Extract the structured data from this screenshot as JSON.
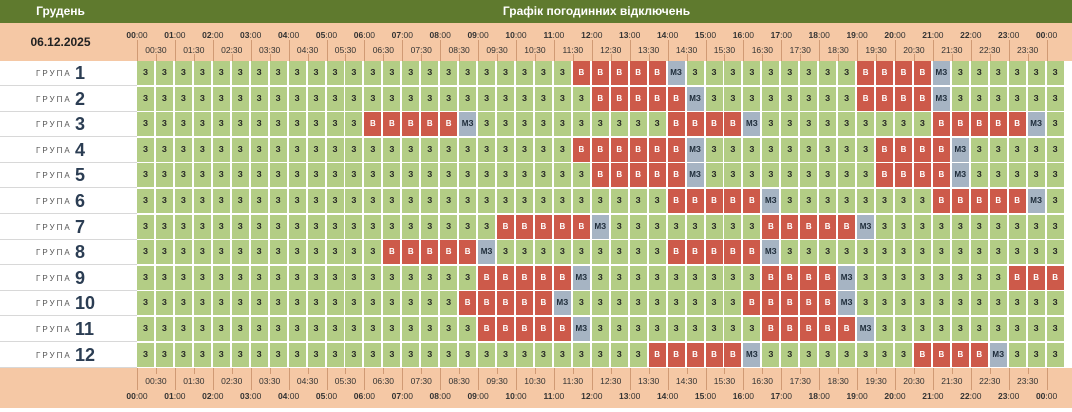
{
  "header": {
    "month": "Грудень",
    "title": "Графік погодинних відключень",
    "date": "06.12.2025"
  },
  "group_word": "ГРУПА",
  "hour_labels": [
    {
      "h": "00",
      "m": ":00"
    },
    {
      "h": "01",
      "m": ":00"
    },
    {
      "h": "02",
      "m": ":00"
    },
    {
      "h": "03",
      "m": ":00"
    },
    {
      "h": "04",
      "m": ":00"
    },
    {
      "h": "05",
      "m": ":00"
    },
    {
      "h": "06",
      "m": ":00"
    },
    {
      "h": "07",
      "m": ":00"
    },
    {
      "h": "08",
      "m": ":00"
    },
    {
      "h": "09",
      "m": ":00"
    },
    {
      "h": "10",
      "m": ":00"
    },
    {
      "h": "11",
      "m": ":00"
    },
    {
      "h": "12",
      "m": ":00"
    },
    {
      "h": "13",
      "m": ":00"
    },
    {
      "h": "14",
      "m": ":00"
    },
    {
      "h": "15",
      "m": ":00"
    },
    {
      "h": "16",
      "m": ":00"
    },
    {
      "h": "17",
      "m": ":00"
    },
    {
      "h": "18",
      "m": ":00"
    },
    {
      "h": "19",
      "m": ":00"
    },
    {
      "h": "20",
      "m": ":00"
    },
    {
      "h": "21",
      "m": ":00"
    },
    {
      "h": "22",
      "m": ":00"
    },
    {
      "h": "23",
      "m": ":00"
    },
    {
      "h": "00",
      "m": ":00"
    }
  ],
  "half_labels": [
    "00:30",
    "01:30",
    "02:30",
    "03:30",
    "04:30",
    "05:30",
    "06:30",
    "07:30",
    "08:30",
    "09:30",
    "10:30",
    "11:30",
    "12:30",
    "13:30",
    "14:30",
    "15:30",
    "16:30",
    "17:30",
    "18:30",
    "19:30",
    "20:30",
    "21:30",
    "22:30",
    "23:30"
  ],
  "legend": {
    "Z": "З",
    "V": "В",
    "M": "МЗ"
  },
  "groups": [
    {
      "name": "1",
      "slots": "ZZZZZZZZZZZZZZZZZZZZZZZVVVVVMZZZZZZZZZVVVVMZZZZZZ"
    },
    {
      "name": "2",
      "slots": "ZZZZZZZZZZZZZZZZZZZZZZZZVVVVVMZZZZZZZZVVVVMZZZZZZ"
    },
    {
      "name": "3",
      "slots": "ZZZZZZZZZZZZVVVVVMZZZZZZZZZZVVVVMZZZZZZZZZVVVVVMZ"
    },
    {
      "name": "4",
      "slots": "ZZZZZZZZZZZZZZZZZZZZZZZVVVVVVMZZZZZZZZZVVVVMZZZZZ"
    },
    {
      "name": "5",
      "slots": "ZZZZZZZZZZZZZZZZZZZZZZZZVVVVVMZZZZZZZZZVVVVMZZZZZ"
    },
    {
      "name": "6",
      "slots": "ZZZZZZZZZZZZZZZZZZZZZZZZZZZZVVVVVMZZZZZZZZVVVVVMZ"
    },
    {
      "name": "7",
      "slots": "ZZZZZZZZZZZZZZZZZZZVVVVVMZZZZZZZZVVVVVMZZZZZZZZZZ"
    },
    {
      "name": "8",
      "slots": "ZZZZZZZZZZZZZVVVVVMZZZZZZZZZVVVVVMZZZZZZZZZZZZZZZ"
    },
    {
      "name": "9",
      "slots": "ZZZZZZZZZZZZZZZZZZVVVVVMZZZZZZZZZVVVVMZZZZZZZZVVV"
    },
    {
      "name": "10",
      "slots": "ZZZZZZZZZZZZZZZZZVVVVVMZZZZZZZZZVVVVVMZZZZZZZZZZZ"
    },
    {
      "name": "11",
      "slots": "ZZZZZZZZZZZZZZZZZZVVVVVMZZZZZZZZZVVVVVMZZZZZZZZZZ"
    },
    {
      "name": "12",
      "slots": "ZZZZZZZZZZZZZZZZZZZZZZZZZZZVVVVVMZZZZZZZZVVVVMZZZ"
    }
  ],
  "colors": {
    "green": "#b3cd85",
    "red": "#cd5a4a",
    "grey": "#a6b4c3",
    "header": "#5f7a2e",
    "band": "#f5c8a5"
  }
}
